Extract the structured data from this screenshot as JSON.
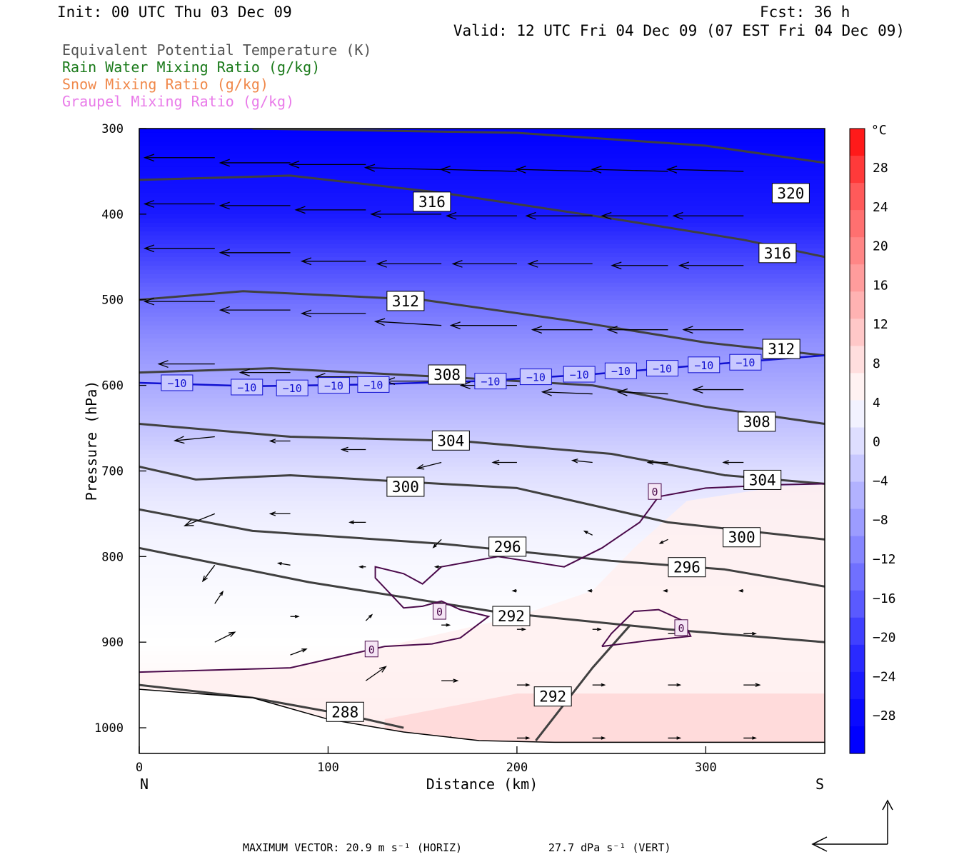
{
  "header": {
    "init": "Init: 00 UTC Thu 03 Dec 09",
    "fcst": "Fcst:   36 h",
    "valid": "Valid: 12 UTC Fri 04 Dec 09 (07 EST Fri 04 Dec 09)"
  },
  "legend": [
    {
      "label": "Equivalent Potential Temperature (K)",
      "color": "#555555"
    },
    {
      "label": "Rain Water Mixing Ratio (g/kg)",
      "color": "#1a7a1a"
    },
    {
      "label": "Snow Mixing Ratio (g/kg)",
      "color": "#f0884a"
    },
    {
      "label": "Graupel Mixing Ratio (g/kg)",
      "color": "#e97be9"
    }
  ],
  "footer": {
    "max_vector": "MAXIMUM VECTOR:  20.9 m s⁻¹ (HORIZ)",
    "max_vert": "27.7 dPa s⁻¹ (VERT)"
  },
  "colorbar": {
    "unit": "°C",
    "ticks": [
      "28",
      "24",
      "20",
      "16",
      "12",
      "8",
      "4",
      "0",
      "−4",
      "−8",
      "−12",
      "−16",
      "−20",
      "−24",
      "−28"
    ],
    "colors_warm": [
      "#ff1a1a",
      "#ff3a3a",
      "#ff5a5a",
      "#ff7070",
      "#ff8686",
      "#ff9c9c",
      "#ffb2b2",
      "#ffc8c8",
      "#ffdede",
      "#fff2f2"
    ],
    "colors_cold": [
      "#f2f2ff",
      "#dedeff",
      "#c8c8ff",
      "#b2b2ff",
      "#9c9cff",
      "#8686ff",
      "#7070ff",
      "#5a5aff",
      "#4040ff",
      "#2a2aff",
      "#1a1aff",
      "#0a0aff",
      "#0000ff"
    ]
  },
  "chart_data": {
    "type": "cross-section",
    "xlabel": "Distance (km)",
    "ylabel": "Pressure (hPa)",
    "x_ticks": [
      "0",
      "100",
      "200",
      "300"
    ],
    "y_ticks": [
      "300",
      "400",
      "500",
      "600",
      "700",
      "800",
      "900",
      "1000"
    ],
    "xlim": [
      0,
      363
    ],
    "ylim": [
      300,
      1030
    ],
    "left_end": "N",
    "right_end": "S",
    "temperature_field": {
      "unit": "°C",
      "profile": [
        {
          "p": 300,
          "t": -30
        },
        {
          "p": 400,
          "t": -27
        },
        {
          "p": 450,
          "t": -22
        },
        {
          "p": 500,
          "t": -17
        },
        {
          "p": 550,
          "t": -13
        },
        {
          "p": 600,
          "t": -10
        },
        {
          "p": 650,
          "t": -7
        },
        {
          "p": 700,
          "t": -4
        },
        {
          "p": 750,
          "t": -2
        },
        {
          "p": 800,
          "t": -1
        },
        {
          "p": 900,
          "t": 0
        },
        {
          "p": 950,
          "t": 1
        },
        {
          "p": 1000,
          "t": 3
        }
      ]
    },
    "theta_e_contours": [
      {
        "level": "320",
        "points": [
          [
            60,
            300
          ],
          [
            200,
            305
          ],
          [
            300,
            320
          ],
          [
            363,
            340
          ]
        ]
      },
      {
        "level": "316",
        "points": [
          [
            0,
            360
          ],
          [
            80,
            355
          ],
          [
            160,
            375
          ],
          [
            250,
            405
          ],
          [
            320,
            430
          ],
          [
            363,
            450
          ]
        ]
      },
      {
        "level": "312",
        "points": [
          [
            0,
            500
          ],
          [
            55,
            490
          ],
          [
            150,
            500
          ],
          [
            230,
            525
          ],
          [
            300,
            550
          ],
          [
            363,
            565
          ]
        ]
      },
      {
        "level": "308",
        "points": [
          [
            0,
            585
          ],
          [
            70,
            580
          ],
          [
            160,
            590
          ],
          [
            240,
            600
          ],
          [
            300,
            625
          ],
          [
            363,
            645
          ]
        ]
      },
      {
        "level": "304",
        "points": [
          [
            0,
            645
          ],
          [
            80,
            660
          ],
          [
            170,
            665
          ],
          [
            250,
            680
          ],
          [
            310,
            705
          ],
          [
            363,
            715
          ]
        ]
      },
      {
        "level": "300",
        "points": [
          [
            0,
            695
          ],
          [
            30,
            710
          ],
          [
            80,
            705
          ],
          [
            200,
            720
          ],
          [
            280,
            760
          ],
          [
            363,
            780
          ]
        ]
      },
      {
        "level": "296",
        "points": [
          [
            0,
            745
          ],
          [
            60,
            770
          ],
          [
            160,
            785
          ],
          [
            250,
            805
          ],
          [
            310,
            815
          ],
          [
            363,
            835
          ]
        ]
      },
      {
        "level": "292",
        "points": [
          [
            0,
            790
          ],
          [
            90,
            830
          ],
          [
            190,
            865
          ],
          [
            280,
            885
          ],
          [
            363,
            900
          ]
        ]
      },
      {
        "level": "292",
        "points": [
          [
            210,
            1015
          ],
          [
            240,
            930
          ],
          [
            260,
            880
          ]
        ]
      },
      {
        "level": "288",
        "points": [
          [
            0,
            950
          ],
          [
            60,
            965
          ],
          [
            110,
            985
          ],
          [
            140,
            1000
          ]
        ]
      }
    ],
    "isotherm_labels": [
      {
        "level": "-10",
        "x": 20,
        "p": 597
      },
      {
        "level": "-10",
        "x": 57,
        "p": 602
      },
      {
        "level": "-10",
        "x": 81,
        "p": 603
      },
      {
        "level": "-10",
        "x": 103,
        "p": 600
      },
      {
        "level": "-10",
        "x": 124,
        "p": 599
      },
      {
        "level": "-10",
        "x": 186,
        "p": 595
      },
      {
        "level": "-10",
        "x": 210,
        "p": 590
      },
      {
        "level": "-10",
        "x": 233,
        "p": 587
      },
      {
        "level": "-10",
        "x": 255,
        "p": 583
      },
      {
        "level": "-10",
        "x": 277,
        "p": 580
      },
      {
        "level": "-10",
        "x": 299,
        "p": 576
      },
      {
        "level": "-10",
        "x": 321,
        "p": 573
      },
      {
        "level": "0",
        "x": 273,
        "p": 724
      },
      {
        "level": "0",
        "x": 159,
        "p": 864
      },
      {
        "level": "0",
        "x": 123,
        "p": 908
      },
      {
        "level": "0",
        "x": 287,
        "p": 883
      }
    ],
    "wind_vectors": [
      {
        "x": 40,
        "p": 334,
        "u": -35,
        "w": 0
      },
      {
        "x": 80,
        "p": 340,
        "u": -35,
        "w": 0
      },
      {
        "x": 120,
        "p": 342,
        "u": -38,
        "w": 0
      },
      {
        "x": 160,
        "p": 348,
        "u": -38,
        "w": -1
      },
      {
        "x": 200,
        "p": 350,
        "u": -38,
        "w": -1
      },
      {
        "x": 240,
        "p": 350,
        "u": -38,
        "w": -1
      },
      {
        "x": 280,
        "p": 350,
        "u": -38,
        "w": -1
      },
      {
        "x": 320,
        "p": 350,
        "u": -38,
        "w": -1
      },
      {
        "x": 40,
        "p": 388,
        "u": -35,
        "w": 0
      },
      {
        "x": 80,
        "p": 390,
        "u": -35,
        "w": 0
      },
      {
        "x": 120,
        "p": 395,
        "u": -35,
        "w": 0
      },
      {
        "x": 160,
        "p": 400,
        "u": -35,
        "w": 0
      },
      {
        "x": 200,
        "p": 402,
        "u": -35,
        "w": 0
      },
      {
        "x": 240,
        "p": 402,
        "u": -33,
        "w": 0
      },
      {
        "x": 280,
        "p": 402,
        "u": -33,
        "w": 0
      },
      {
        "x": 320,
        "p": 402,
        "u": -35,
        "w": 0
      },
      {
        "x": 40,
        "p": 440,
        "u": -35,
        "w": 0
      },
      {
        "x": 80,
        "p": 445,
        "u": -35,
        "w": 0
      },
      {
        "x": 120,
        "p": 455,
        "u": -32,
        "w": 0
      },
      {
        "x": 160,
        "p": 458,
        "u": -32,
        "w": 0
      },
      {
        "x": 200,
        "p": 458,
        "u": -32,
        "w": 0
      },
      {
        "x": 240,
        "p": 458,
        "u": -32,
        "w": 0
      },
      {
        "x": 280,
        "p": 460,
        "u": -28,
        "w": 0
      },
      {
        "x": 320,
        "p": 460,
        "u": -32,
        "w": 0
      },
      {
        "x": 40,
        "p": 502,
        "u": -35,
        "w": 0
      },
      {
        "x": 80,
        "p": 512,
        "u": -35,
        "w": 0
      },
      {
        "x": 120,
        "p": 516,
        "u": -32,
        "w": 0
      },
      {
        "x": 160,
        "p": 530,
        "u": -33,
        "w": -2
      },
      {
        "x": 200,
        "p": 530,
        "u": -33,
        "w": 0
      },
      {
        "x": 240,
        "p": 535,
        "u": -30,
        "w": 0
      },
      {
        "x": 280,
        "p": 535,
        "u": -30,
        "w": 0
      },
      {
        "x": 320,
        "p": 535,
        "u": -30,
        "w": 0
      },
      {
        "x": 40,
        "p": 575,
        "u": -28,
        "w": 0
      },
      {
        "x": 80,
        "p": 585,
        "u": -25,
        "w": 0
      },
      {
        "x": 120,
        "p": 590,
        "u": -25,
        "w": 0
      },
      {
        "x": 160,
        "p": 595,
        "u": -28,
        "w": 0
      },
      {
        "x": 200,
        "p": 600,
        "u": -28,
        "w": 0
      },
      {
        "x": 240,
        "p": 610,
        "u": -25,
        "w": -1
      },
      {
        "x": 280,
        "p": 610,
        "u": -25,
        "w": -1
      },
      {
        "x": 320,
        "p": 605,
        "u": -25,
        "w": 0
      },
      {
        "x": 40,
        "p": 660,
        "u": -20,
        "w": 2
      },
      {
        "x": 80,
        "p": 665,
        "u": -10,
        "w": 0
      },
      {
        "x": 120,
        "p": 675,
        "u": -12,
        "w": 0
      },
      {
        "x": 160,
        "p": 690,
        "u": -12,
        "w": 3
      },
      {
        "x": 200,
        "p": 690,
        "u": -12,
        "w": 0
      },
      {
        "x": 240,
        "p": 690,
        "u": -10,
        "w": -1
      },
      {
        "x": 280,
        "p": 690,
        "u": -10,
        "w": 0
      },
      {
        "x": 320,
        "p": 690,
        "u": -10,
        "w": 0
      },
      {
        "x": 40,
        "p": 750,
        "u": -15,
        "w": 6
      },
      {
        "x": 80,
        "p": 750,
        "u": -10,
        "w": 0
      },
      {
        "x": 120,
        "p": 760,
        "u": -8,
        "w": 0
      },
      {
        "x": 160,
        "p": 780,
        "u": -4,
        "w": 4
      },
      {
        "x": 240,
        "p": 775,
        "u": -4,
        "w": -2
      },
      {
        "x": 280,
        "p": 780,
        "u": -4,
        "w": 2
      },
      {
        "x": 320,
        "p": 780,
        "u": -4,
        "w": 2
      },
      {
        "x": 40,
        "p": 810,
        "u": -6,
        "w": 8
      },
      {
        "x": 80,
        "p": 810,
        "u": -6,
        "w": -1
      },
      {
        "x": 120,
        "p": 812,
        "u": -3,
        "w": 0
      },
      {
        "x": 160,
        "p": 812,
        "u": -3,
        "w": 0
      },
      {
        "x": 200,
        "p": 840,
        "u": -2,
        "w": 0
      },
      {
        "x": 240,
        "p": 840,
        "u": -2,
        "w": 0
      },
      {
        "x": 280,
        "p": 840,
        "u": -2,
        "w": 0
      },
      {
        "x": 320,
        "p": 840,
        "u": -2,
        "w": 0
      },
      {
        "x": 40,
        "p": 855,
        "u": 4,
        "w": -6
      },
      {
        "x": 80,
        "p": 870,
        "u": 4,
        "w": 0
      },
      {
        "x": 120,
        "p": 875,
        "u": 3,
        "w": -3
      },
      {
        "x": 160,
        "p": 880,
        "u": 4,
        "w": 0
      },
      {
        "x": 200,
        "p": 885,
        "u": 4,
        "w": 0
      },
      {
        "x": 240,
        "p": 885,
        "u": 4,
        "w": 0
      },
      {
        "x": 280,
        "p": 890,
        "u": 5,
        "w": 0
      },
      {
        "x": 320,
        "p": 890,
        "u": 6,
        "w": 0
      },
      {
        "x": 40,
        "p": 900,
        "u": 10,
        "w": -5
      },
      {
        "x": 80,
        "p": 915,
        "u": 8,
        "w": -3
      },
      {
        "x": 120,
        "p": 945,
        "u": 10,
        "w": -7
      },
      {
        "x": 160,
        "p": 945,
        "u": 8,
        "w": 0
      },
      {
        "x": 200,
        "p": 950,
        "u": 6,
        "w": 0
      },
      {
        "x": 240,
        "p": 950,
        "u": 6,
        "w": 0
      },
      {
        "x": 280,
        "p": 950,
        "u": 6,
        "w": 0
      },
      {
        "x": 320,
        "p": 950,
        "u": 8,
        "w": 0
      },
      {
        "x": 160,
        "p": 1012,
        "u": 6,
        "w": 0
      },
      {
        "x": 200,
        "p": 1012,
        "u": 6,
        "w": 0
      },
      {
        "x": 240,
        "p": 1012,
        "u": 6,
        "w": 0
      },
      {
        "x": 280,
        "p": 1012,
        "u": 6,
        "w": 0
      },
      {
        "x": 320,
        "p": 1012,
        "u": 6,
        "w": 0
      }
    ],
    "terrain_top": [
      [
        0,
        955
      ],
      [
        60,
        965
      ],
      [
        100,
        990
      ],
      [
        140,
        1005
      ],
      [
        180,
        1015
      ],
      [
        220,
        1017
      ],
      [
        363,
        1017
      ]
    ]
  }
}
